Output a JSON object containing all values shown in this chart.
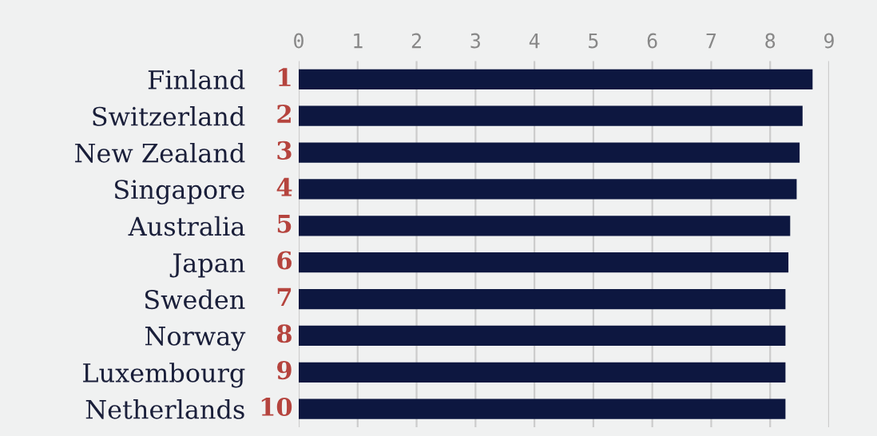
{
  "chart_data": {
    "type": "bar",
    "orientation": "horizontal",
    "categories": [
      "Finland",
      "Switzerland",
      "New Zealand",
      "Singapore",
      "Australia",
      "Japan",
      "Sweden",
      "Norway",
      "Luxembourg",
      "Netherlands"
    ],
    "values": [
      8.72,
      8.55,
      8.5,
      8.45,
      8.34,
      8.31,
      8.26,
      8.26,
      8.26,
      8.26
    ],
    "color": "#0d1740",
    "xlim": [
      0,
      9
    ],
    "xticks": [
      0,
      1,
      2,
      3,
      4,
      5,
      6,
      7,
      8,
      9
    ],
    "grid": "x",
    "annotations": [
      "1",
      "2",
      "3",
      "4",
      "5",
      "6",
      "7",
      "8",
      "9",
      "10"
    ]
  }
}
